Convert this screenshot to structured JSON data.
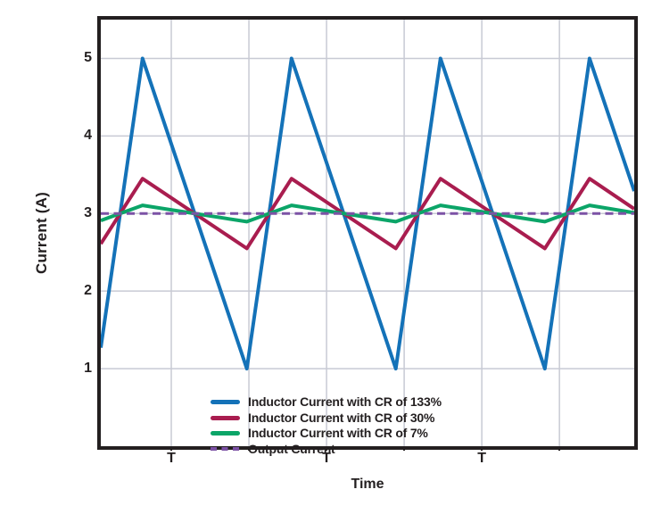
{
  "chart_data": {
    "type": "line",
    "title": "",
    "xlabel": "Time",
    "ylabel": "Current (A)",
    "x_unit": "T (switching period)",
    "xlim": [
      0,
      3.58
    ],
    "ylim": [
      0,
      5.5
    ],
    "yticks": [
      5,
      4,
      3,
      2,
      1
    ],
    "xticks": [
      {
        "label": "T",
        "pos": 0.473
      },
      {
        "label": "T",
        "pos": 1.515
      },
      {
        "label": "T",
        "pos": 2.557
      }
    ],
    "vgrid_positions": [
      0.473,
      0.994,
      1.515,
      2.036,
      2.557,
      3.078
    ],
    "grid": true,
    "legend_position": "lower-left",
    "frame_color": "#231F20",
    "grid_color": "#C8CAD4",
    "series": [
      {
        "name": "Inductor Current with CR of 133%",
        "color": "#1472B8",
        "style": "solid",
        "width": 4,
        "points": [
          [
            0,
            1.27
          ],
          [
            0.28,
            5
          ],
          [
            0.98,
            1
          ],
          [
            1.28,
            5
          ],
          [
            1.98,
            1
          ],
          [
            2.28,
            5
          ],
          [
            2.98,
            1
          ],
          [
            3.28,
            5
          ],
          [
            3.58,
            3.29
          ]
        ]
      },
      {
        "name": "Inductor Current with CR of 30%",
        "color": "#A91D4F",
        "style": "solid",
        "width": 4,
        "points": [
          [
            0,
            2.61
          ],
          [
            0.28,
            3.45
          ],
          [
            0.98,
            2.55
          ],
          [
            1.28,
            3.45
          ],
          [
            1.98,
            2.55
          ],
          [
            2.28,
            3.45
          ],
          [
            2.98,
            2.55
          ],
          [
            3.28,
            3.45
          ],
          [
            3.58,
            3.06
          ]
        ]
      },
      {
        "name": "Inductor Current with CR of 7%",
        "color": "#0BA568",
        "style": "solid",
        "width": 4,
        "points": [
          [
            0,
            2.91
          ],
          [
            0.28,
            3.105
          ],
          [
            0.98,
            2.895
          ],
          [
            1.28,
            3.105
          ],
          [
            1.98,
            2.895
          ],
          [
            2.28,
            3.105
          ],
          [
            2.98,
            2.895
          ],
          [
            3.28,
            3.105
          ],
          [
            3.58,
            3.01
          ]
        ]
      },
      {
        "name": "Output Current",
        "color": "#7C52A5",
        "style": "dashed",
        "width": 3,
        "points": [
          [
            0,
            3
          ],
          [
            3.58,
            3
          ]
        ]
      }
    ]
  }
}
